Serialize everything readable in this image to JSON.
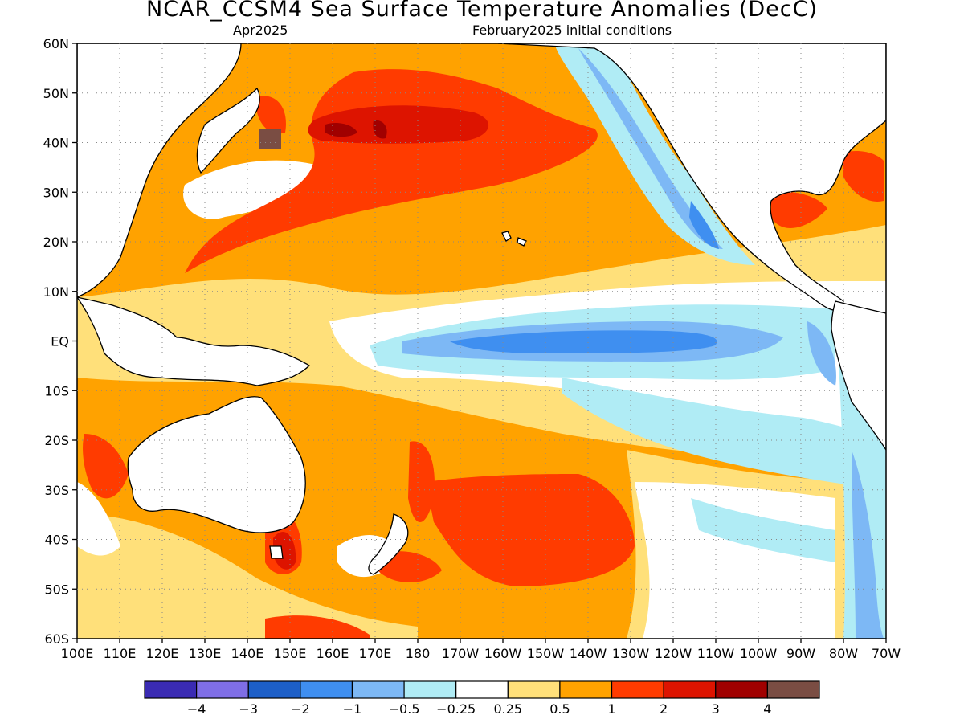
{
  "title": "NCAR_CCSM4 Sea Surface Temperature Anomalies (DecC)",
  "subtitle_left": "Apr2025",
  "subtitle_right": "February2025 initial conditions",
  "map": {
    "lon_range": [
      100,
      290
    ],
    "lat_range": [
      -60,
      60
    ],
    "lat_labels": [
      "60N",
      "50N",
      "40N",
      "30N",
      "20N",
      "10N",
      "EQ",
      "10S",
      "20S",
      "30S",
      "40S",
      "50S",
      "60S"
    ],
    "lon_labels": [
      "100E",
      "110E",
      "120E",
      "130E",
      "140E",
      "150E",
      "160E",
      "170E",
      "180",
      "170W",
      "160W",
      "150W",
      "140W",
      "130W",
      "120W",
      "110W",
      "100W",
      "90W",
      "80W",
      "70W"
    ],
    "grid": "dotted"
  },
  "colorbar": {
    "colors": [
      "#3a2bb3",
      "#7f6ee6",
      "#1d5fc8",
      "#3f8ff0",
      "#7db8f5",
      "#b0ecf5",
      "#ffffff",
      "#ffe07a",
      "#ffa200",
      "#ff3b00",
      "#dd1400",
      "#a00000",
      "#7a4d43"
    ],
    "labels": [
      "−4",
      "−3",
      "−2",
      "−1",
      "−0.5",
      "−0.25",
      "0.25",
      "0.5",
      "1",
      "2",
      "3",
      "4"
    ]
  },
  "regions": {
    "land": [
      "Asia",
      "Maritime Continent",
      "Australia",
      "New Zealand",
      "North America",
      "Central America",
      "South America",
      "Japan",
      "Hawaii"
    ],
    "cold_tongue": "equatorial eastern Pacific"
  }
}
